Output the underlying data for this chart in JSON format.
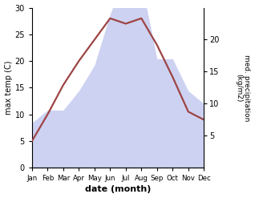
{
  "months": [
    "Jan",
    "Feb",
    "Mar",
    "Apr",
    "May",
    "Jun",
    "Jul",
    "Aug",
    "Sep",
    "Oct",
    "Nov",
    "Dec"
  ],
  "max_temp": [
    5,
    10,
    15.5,
    20,
    24,
    28,
    27,
    28,
    23,
    17,
    10.5,
    9
  ],
  "precipitation": [
    7,
    9,
    9,
    12,
    16,
    24,
    30,
    29,
    17,
    17,
    12,
    10
  ],
  "temp_color": "#9e4444",
  "precip_fill_color": "#c5caf0",
  "precip_fill_alpha": 0.85,
  "left_ylim": [
    0,
    30
  ],
  "right_ylim": [
    0,
    25
  ],
  "left_yticks": [
    0,
    5,
    10,
    15,
    20,
    25,
    30
  ],
  "right_yticks": [
    5,
    10,
    15,
    20
  ],
  "xlabel": "date (month)",
  "ylabel_left": "max temp (C)",
  "ylabel_right": "med. precipitation\n(kg/m2)"
}
